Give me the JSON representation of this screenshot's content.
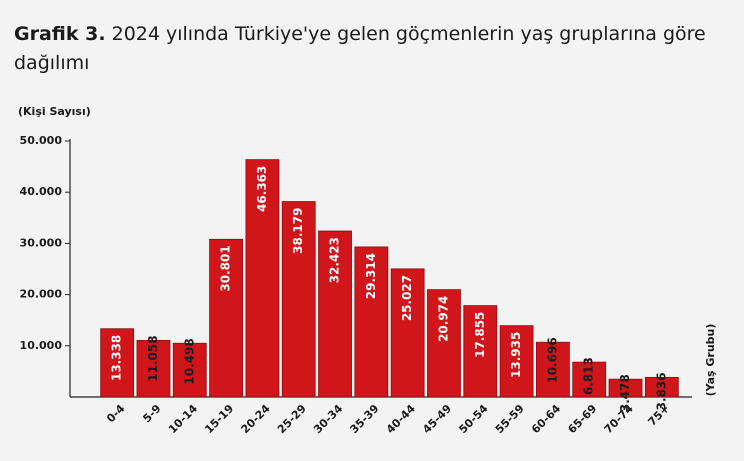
{
  "chart_data": {
    "type": "bar",
    "title_label": "Grafik 3.",
    "title": "2024 yılında Türkiye'ye gelen göçmenlerin yaş gruplarına göre",
    "title_line2": "dağılımı",
    "y_label": "(Kişi Sayısı)",
    "x_label": "(Yaş Grubu)",
    "categories": [
      "0-4",
      "5-9",
      "10-14",
      "15-19",
      "20-24",
      "25-29",
      "30-34",
      "35-39",
      "40-44",
      "45-49",
      "50-54",
      "55-59",
      "60-64",
      "65-69",
      "70-74",
      "75+"
    ],
    "values": [
      13338,
      11058,
      10498,
      30801,
      46363,
      38179,
      32423,
      29314,
      25027,
      20974,
      17855,
      13935,
      10696,
      6813,
      3478,
      3836
    ],
    "value_labels": [
      "13.338",
      "11.058",
      "10.498",
      "30.801",
      "46.363",
      "38.179",
      "32.423",
      "29.314",
      "25.027",
      "20.974",
      "17.855",
      "13.935",
      "10.696",
      "6.813",
      "3.478",
      "3.836"
    ],
    "color": "#d0151b",
    "ylim": [
      0,
      50000
    ],
    "yticks": [
      {
        "value": 10000,
        "label": "10.000"
      },
      {
        "value": 20000,
        "label": "20.000"
      },
      {
        "value": 30000,
        "label": "30.000"
      },
      {
        "value": 40000,
        "label": "40.000"
      },
      {
        "value": 50000,
        "label": "50.000"
      }
    ]
  }
}
